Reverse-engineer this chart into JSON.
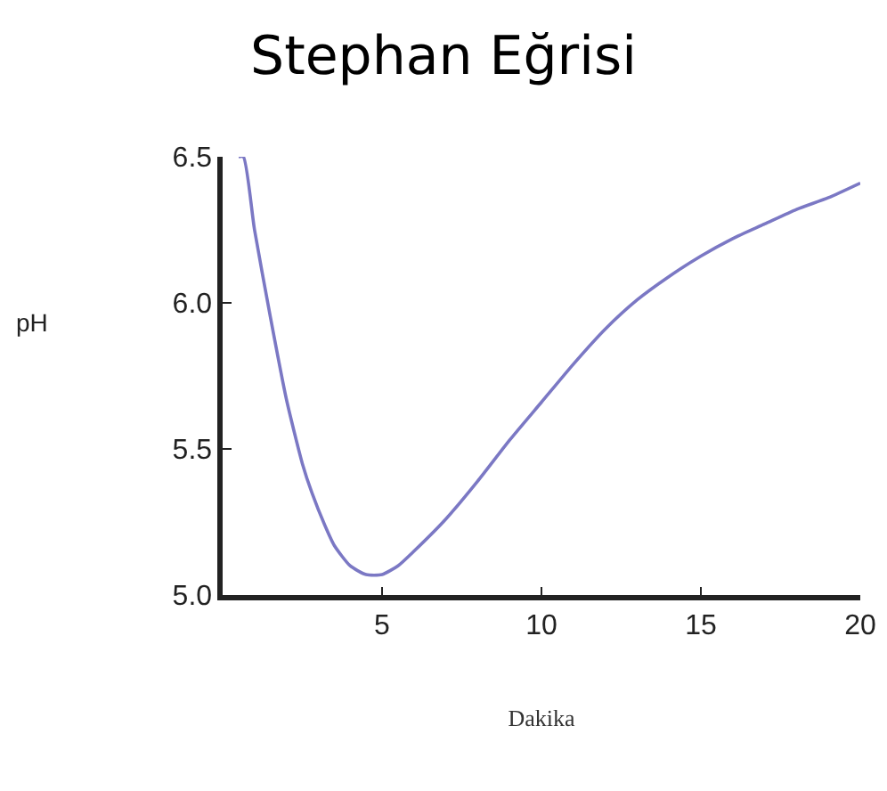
{
  "chart_data": {
    "type": "line",
    "title": "Stephan Eğrisi",
    "xlabel": "Dakika",
    "ylabel": "pH",
    "series": [
      {
        "color": "#7b78c4",
        "x": [
          0.5,
          0.65,
          1.0,
          1.5,
          2.0,
          2.5,
          2.8,
          3.2,
          3.5,
          4.0,
          4.5,
          5.0,
          5.5,
          6.0,
          7.0,
          8.0,
          9.0,
          10.0,
          11.0,
          12.0,
          13.0,
          14.0,
          15.0,
          16.0,
          17.0,
          18.0,
          19.0,
          20.0
        ],
        "values": [
          6.5,
          6.5,
          6.25,
          5.95,
          5.67,
          5.45,
          5.35,
          5.24,
          5.17,
          5.1,
          5.07,
          5.07,
          5.1,
          5.15,
          5.26,
          5.39,
          5.53,
          5.66,
          5.79,
          5.91,
          6.01,
          6.09,
          6.16,
          6.22,
          6.27,
          6.32,
          6.36,
          6.41
        ]
      }
    ],
    "xlim": [
      0,
      20
    ],
    "xticks": [
      5,
      10,
      15,
      20
    ],
    "ylim": [
      5.0,
      6.5
    ],
    "yticks": [
      {
        "value": 5.0,
        "label": "5.0"
      },
      {
        "value": 5.5,
        "label": "5.5"
      },
      {
        "value": 6.0,
        "label": "6.0"
      },
      {
        "value": 6.5,
        "label": "6.5"
      }
    ],
    "grid": false,
    "marker": "none",
    "line_style": "solid"
  }
}
